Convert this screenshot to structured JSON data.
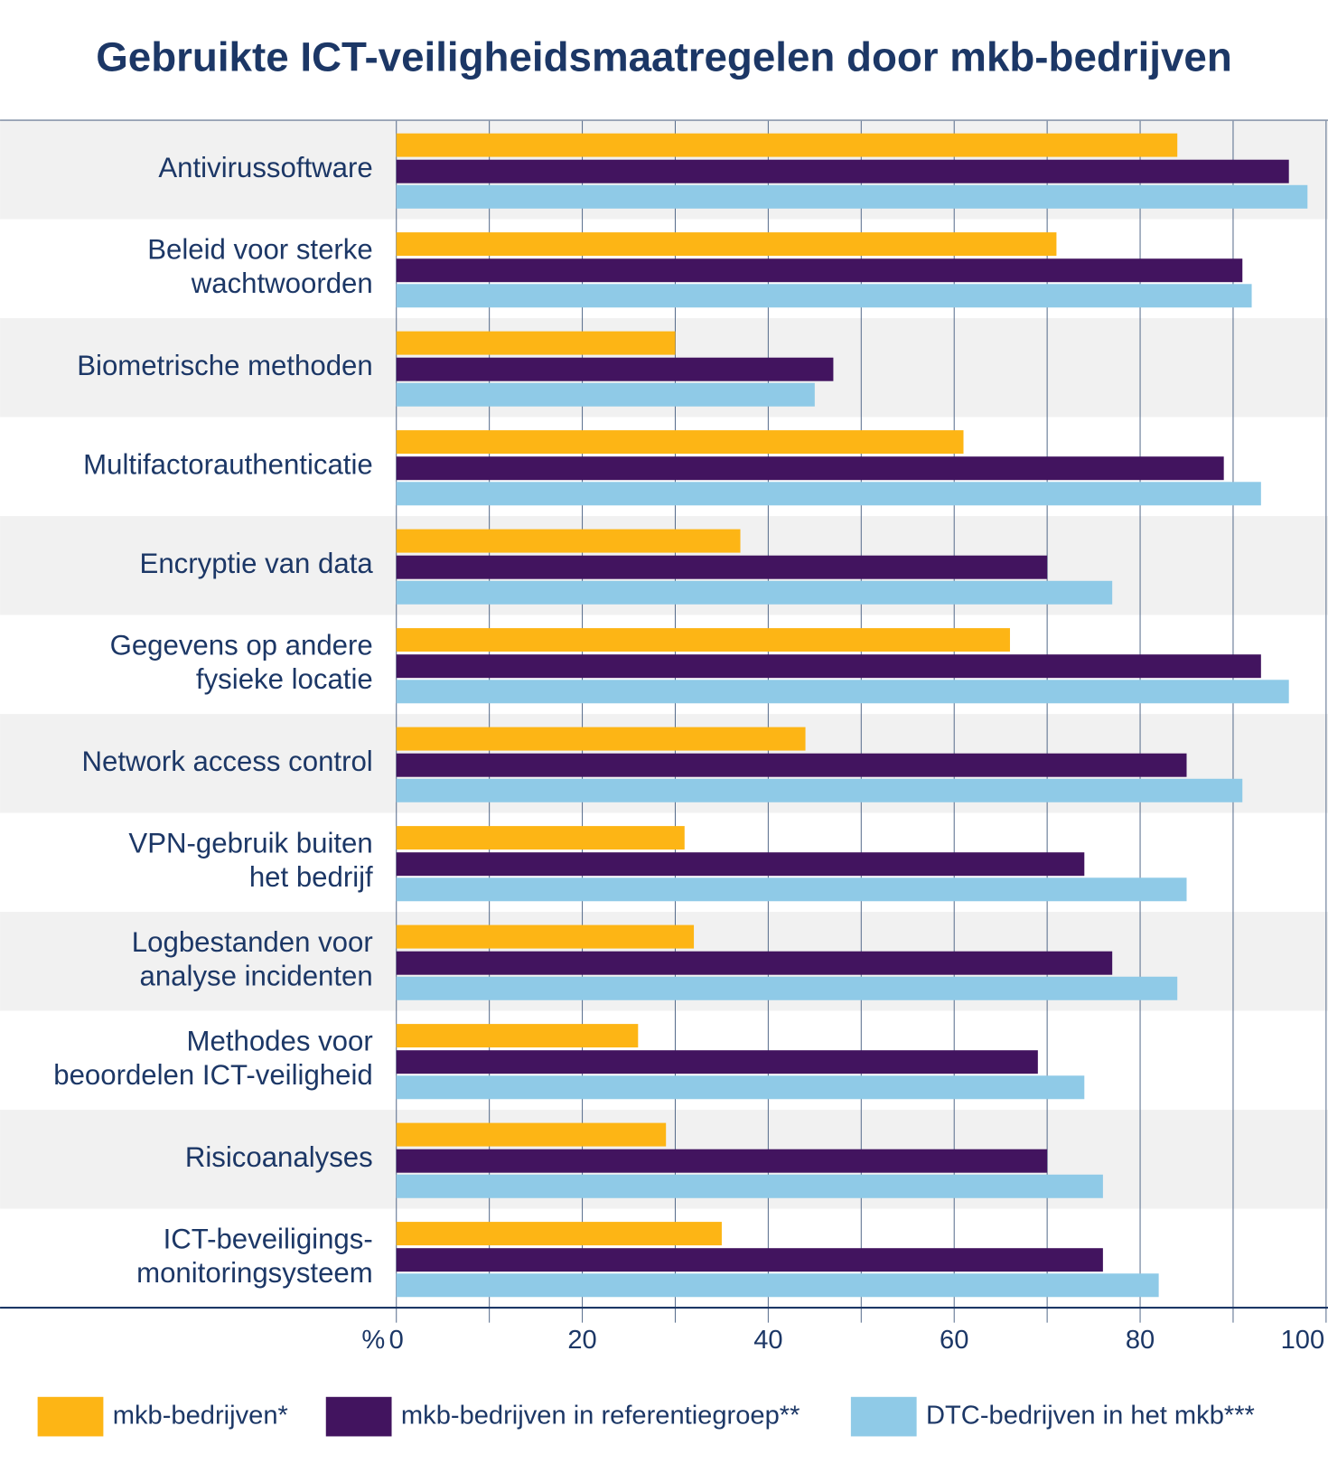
{
  "chart_data": {
    "type": "hbar",
    "title": "Gebruikte ICT-veiligheidsmaatregelen door mkb-bedrijven",
    "categories": [
      "Antivirussoftware",
      "Beleid voor sterke\nwachtwoorden",
      "Biometrische methoden",
      "Multifactorauthenticatie",
      "Encryptie van data",
      "Gegevens op andere\nfysieke locatie",
      "Network access control",
      "VPN-gebruik buiten\nhet bedrijf",
      "Logbestanden voor\nanalyse incidenten",
      "Methodes voor\nbeoordelen ICT-veiligheid",
      "Risicoanalyses",
      "ICT-beveiligings-\nmonitoringsysteem"
    ],
    "series": [
      {
        "name": "mkb-bedrijven*",
        "color": "#fdb515",
        "values": [
          84,
          71,
          30,
          61,
          37,
          66,
          44,
          31,
          32,
          26,
          29,
          35
        ]
      },
      {
        "name": "mkb-bedrijven in referentiegroep**",
        "color": "#42145f",
        "values": [
          96,
          91,
          47,
          89,
          70,
          93,
          85,
          74,
          77,
          69,
          70,
          76
        ]
      },
      {
        "name": "DTC-bedrijven in het mkb***",
        "color": "#8fcae7",
        "values": [
          98,
          92,
          45,
          93,
          77,
          96,
          91,
          85,
          84,
          74,
          76,
          82
        ]
      }
    ],
    "x_unit": "%",
    "xlim": [
      0,
      100
    ],
    "xticks": [
      0,
      20,
      40,
      60,
      80,
      100
    ],
    "minor_xticks": [
      10,
      30,
      50,
      70,
      90
    ],
    "grid": true,
    "legend": "bottom"
  }
}
